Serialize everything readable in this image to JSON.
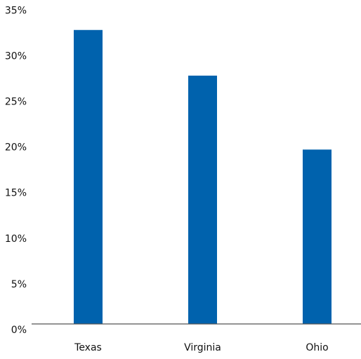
{
  "chart_data": {
    "type": "bar",
    "categories": [
      "Texas",
      "Virginia",
      "Ohio"
    ],
    "values": [
      32.2,
      27.2,
      19.1
    ],
    "color": "#0062ad",
    "ylim": [
      0,
      35
    ],
    "yticks": [
      {
        "value": 0,
        "label": "0%"
      },
      {
        "value": 5,
        "label": "5%"
      },
      {
        "value": 10,
        "label": "10%"
      },
      {
        "value": 15,
        "label": "15%"
      },
      {
        "value": 20,
        "label": "20%"
      },
      {
        "value": 25,
        "label": "25%"
      },
      {
        "value": 30,
        "label": "30%"
      },
      {
        "value": 35,
        "label": "35%"
      }
    ],
    "grid": false
  }
}
